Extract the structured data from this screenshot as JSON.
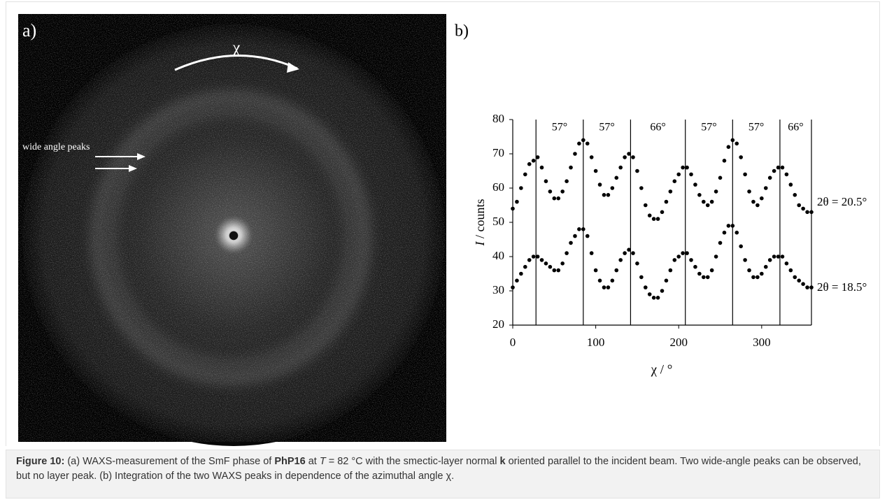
{
  "panel_a": {
    "label": "a)",
    "arrow_label": "χ",
    "peaks_label": "wide angle peaks"
  },
  "panel_b_label": "b)",
  "chart_data": {
    "type": "scatter",
    "ylabel_symbol": "I",
    "ylabel_unit": " / counts",
    "xlabel": "χ / °",
    "xlim": [
      0,
      360
    ],
    "xticks": [
      0,
      100,
      200,
      300
    ],
    "ylim": [
      20,
      80
    ],
    "yticks": [
      20,
      30,
      40,
      50,
      60,
      70,
      80
    ],
    "dividers": [
      28,
      85,
      142,
      208,
      265,
      322
    ],
    "interval_labels": [
      "57°",
      "57°",
      "66°",
      "57°",
      "57°",
      "66°"
    ],
    "x": [
      0,
      5,
      10,
      15,
      20,
      25,
      30,
      35,
      40,
      45,
      50,
      55,
      60,
      65,
      70,
      75,
      80,
      85,
      90,
      95,
      100,
      105,
      110,
      115,
      120,
      125,
      130,
      135,
      140,
      145,
      150,
      155,
      160,
      165,
      170,
      175,
      180,
      185,
      190,
      195,
      200,
      205,
      210,
      215,
      220,
      225,
      230,
      235,
      240,
      245,
      250,
      255,
      260,
      265,
      270,
      275,
      280,
      285,
      290,
      295,
      300,
      305,
      310,
      315,
      320,
      325,
      330,
      335,
      340,
      345,
      350,
      355,
      360
    ],
    "series": [
      {
        "name": "2θ = 20.5°",
        "color": "#000000",
        "values": [
          54,
          56,
          60,
          64,
          67,
          68,
          69,
          66,
          62,
          59,
          57,
          57,
          59,
          62,
          66,
          70,
          73,
          74,
          73,
          69,
          65,
          61,
          58,
          58,
          60,
          63,
          66,
          69,
          70,
          69,
          65,
          60,
          55,
          52,
          51,
          51,
          53,
          56,
          59,
          62,
          64,
          66,
          66,
          64,
          61,
          58,
          56,
          55,
          56,
          59,
          63,
          68,
          72,
          74,
          73,
          69,
          64,
          59,
          56,
          55,
          57,
          60,
          63,
          65,
          66,
          66,
          64,
          61,
          58,
          55,
          54,
          53,
          53
        ]
      },
      {
        "name": "2θ = 18.5°",
        "color": "#000000",
        "values": [
          31,
          33,
          35,
          37,
          39,
          40,
          40,
          39,
          38,
          37,
          36,
          36,
          38,
          41,
          44,
          46,
          48,
          48,
          46,
          41,
          36,
          33,
          31,
          31,
          33,
          36,
          39,
          41,
          42,
          41,
          38,
          34,
          31,
          29,
          28,
          28,
          30,
          33,
          36,
          39,
          40,
          41,
          41,
          39,
          37,
          35,
          34,
          34,
          36,
          40,
          44,
          47,
          49,
          49,
          47,
          43,
          39,
          36,
          34,
          34,
          35,
          37,
          39,
          40,
          40,
          40,
          38,
          36,
          34,
          33,
          32,
          31,
          31
        ]
      }
    ]
  },
  "caption": [
    "Figure 10:",
    " (a) WAXS-measurement of the SmF phase of ",
    "PhP16",
    " at ",
    "T",
    " = 82 °C with the smectic-layer normal ",
    "k",
    " oriented parallel to the incident beam. Two wide-angle peaks can be observed, but no layer peak. (b) Integration of the two WAXS peaks in dependence of the azimuthal angle χ."
  ]
}
